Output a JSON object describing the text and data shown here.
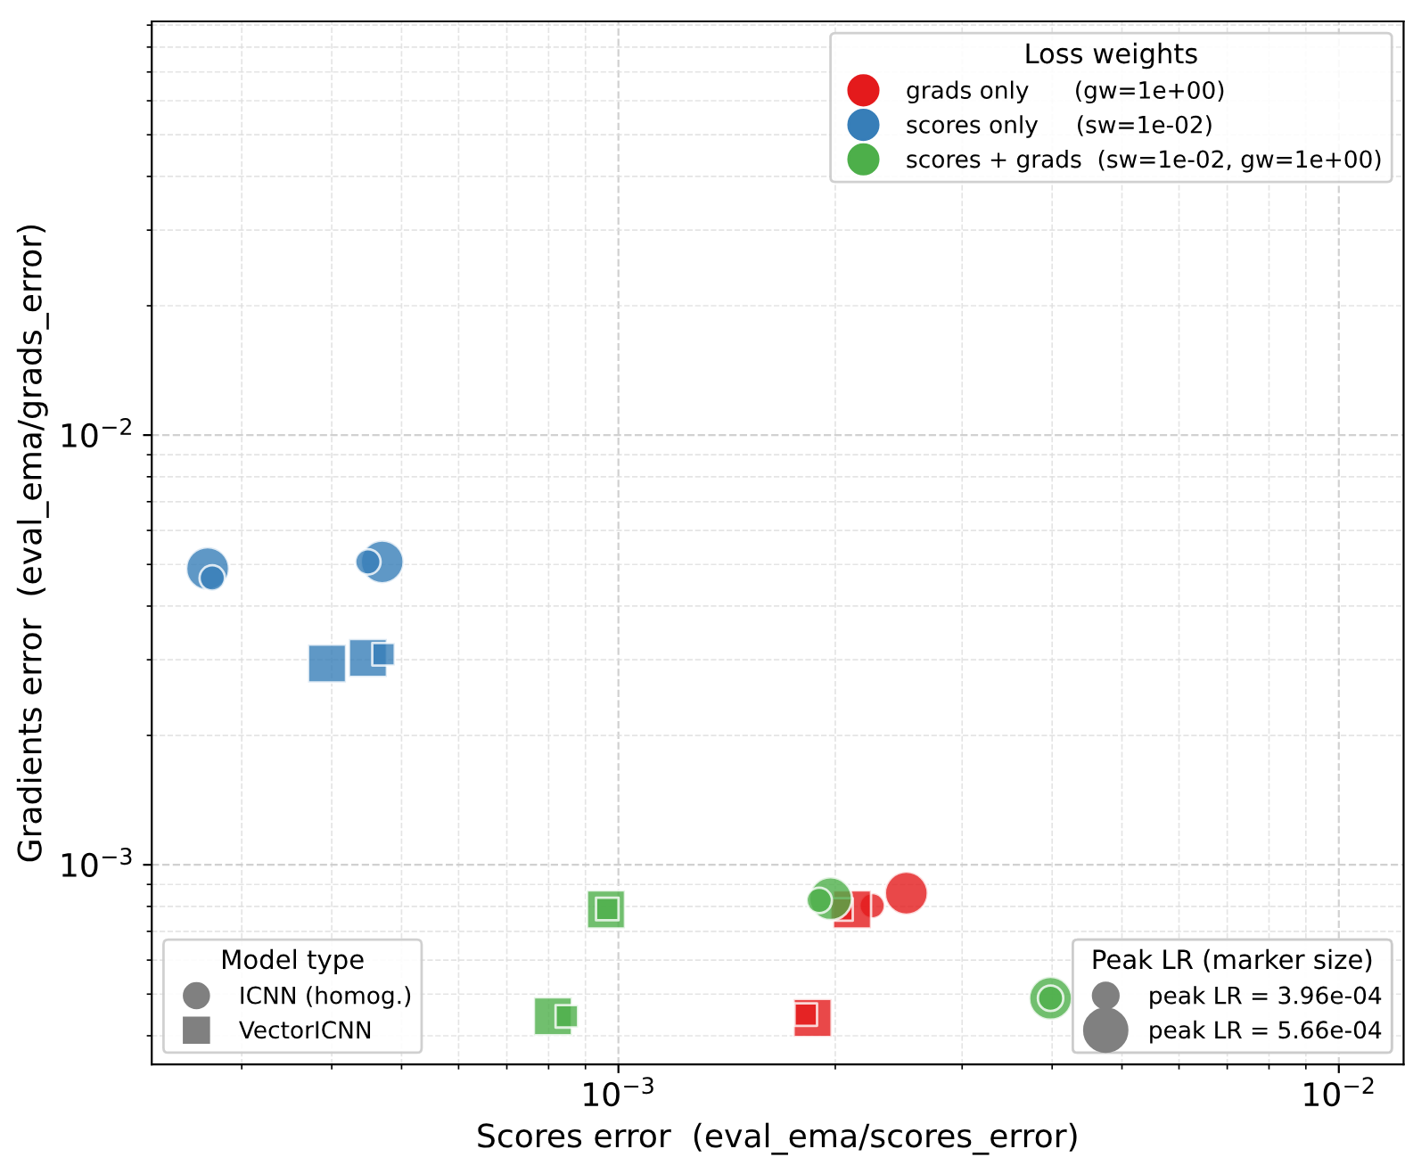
{
  "chart_data": {
    "type": "bubble",
    "xlabel": "Scores error  (eval_ema/scores_error)",
    "ylabel": "Gradients error  (eval_ema/grads_error)",
    "log": "xy",
    "grid": true,
    "legend": "top right",
    "legend_title": "Loss weights",
    "xlim": [
      0.000225,
      0.0123
    ],
    "ylim": [
      0.000343,
      0.0918
    ],
    "xticks": [
      {
        "value": 0.001,
        "label": "10$^{−3}$"
      },
      {
        "value": 0.01,
        "label": "10$^{−2}$"
      }
    ],
    "yticks": [
      {
        "value": 0.001,
        "label": "10$^{−3}$"
      },
      {
        "value": 0.01,
        "label": "10$^{−2}$"
      }
    ],
    "series": [
      {
        "name": "grads only      (gw=1e+00)",
        "color": "#e41a1c",
        "marker": "circle",
        "x": [
          0.00251,
          0.00225
        ],
        "values": [
          0.000859,
          0.000803
        ],
        "sizes": [
          1,
          0.35
        ]
      },
      {
        "color": "#e41a1c",
        "marker": "square",
        "x": [
          0.00211,
          0.00204,
          0.00186,
          0.00182
        ],
        "values": [
          0.000787,
          0.000787,
          0.00044,
          0.000448
        ],
        "sizes": [
          1,
          0.35,
          1,
          0.35
        ]
      },
      {
        "name": "scores only     (sw=1e-02)",
        "color": "#377eb8",
        "marker": "circle",
        "x": [
          0.000269,
          0.000273,
          0.00047,
          0.000449
        ],
        "values": [
          0.00489,
          0.00465,
          0.00507,
          0.00507
        ],
        "sizes": [
          1,
          0.35,
          1,
          0.35
        ]
      },
      {
        "color": "#377eb8",
        "marker": "square",
        "x": [
          0.000394,
          0.000449,
          0.000472
        ],
        "values": [
          0.00294,
          0.00303,
          0.00309
        ],
        "sizes": [
          1,
          1,
          0.35
        ]
      },
      {
        "name": "scores + grads  (sw=1e-02, gw=1e+00)",
        "color": "#4daf4a",
        "marker": "circle",
        "x": [
          0.00197,
          0.0019,
          0.00398,
          0.00398
        ],
        "values": [
          0.000834,
          0.000826,
          0.000489,
          0.000489
        ],
        "sizes": [
          1,
          0.35,
          1,
          0.35
        ]
      },
      {
        "color": "#4daf4a",
        "marker": "square",
        "x": [
          0.000961,
          0.000965,
          0.000811,
          0.000848
        ],
        "values": [
          0.000787,
          0.000789,
          0.000444,
          0.000444
        ],
        "sizes": [
          1,
          0.35,
          1,
          0.35
        ]
      }
    ],
    "annotations": [
      "Model type",
      "ICNN (homog.)",
      "VectorICNN",
      "Peak LR (marker size)",
      "peak LR = 3.96e-04",
      "peak LR = 5.66e-04"
    ]
  }
}
